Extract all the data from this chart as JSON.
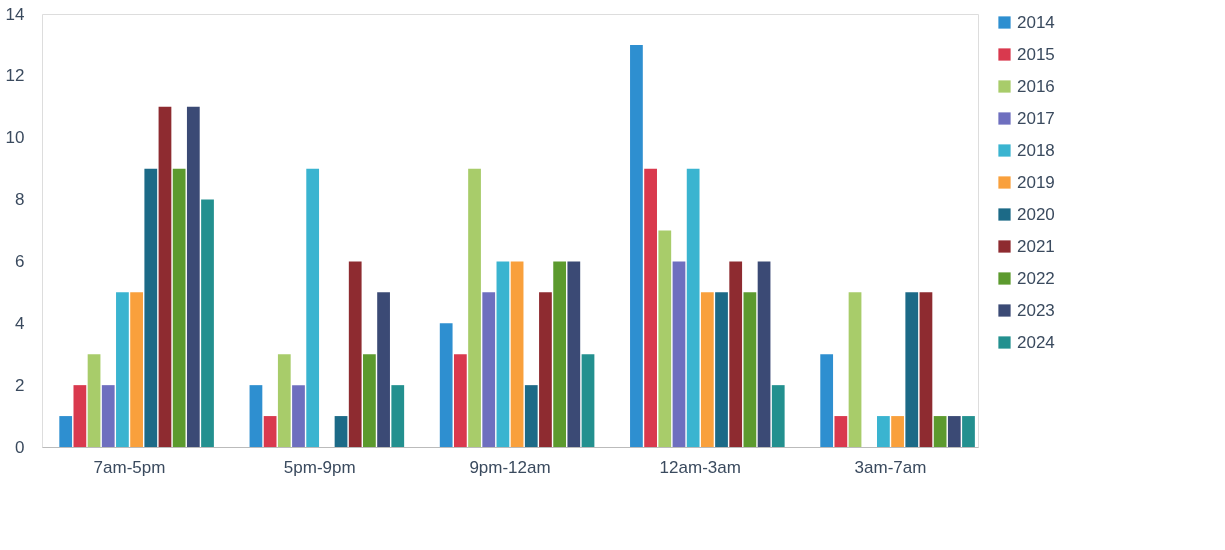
{
  "chart_data": {
    "type": "bar",
    "categories": [
      "7am-5pm",
      "5pm-9pm",
      "9pm-12am",
      "12am-3am",
      "3am-7am"
    ],
    "ylim": [
      0,
      14
    ],
    "yticks": [
      0,
      2,
      4,
      6,
      8,
      10,
      12,
      14
    ],
    "grid": false,
    "legend": "right",
    "series": [
      {
        "name": "2014",
        "color": "#2e8fd0",
        "values": [
          1,
          2,
          4,
          13,
          3
        ]
      },
      {
        "name": "2015",
        "color": "#d9394e",
        "values": [
          2,
          1,
          3,
          9,
          1
        ]
      },
      {
        "name": "2016",
        "color": "#a8cc6a",
        "values": [
          3,
          3,
          9,
          7,
          5
        ]
      },
      {
        "name": "2017",
        "color": "#6e6fbf",
        "values": [
          2,
          2,
          5,
          6,
          0
        ]
      },
      {
        "name": "2018",
        "color": "#3ab4d0",
        "values": [
          5,
          9,
          6,
          9,
          1
        ]
      },
      {
        "name": "2019",
        "color": "#f9a03c",
        "values": [
          5,
          0,
          6,
          5,
          1
        ]
      },
      {
        "name": "2020",
        "color": "#1c6a87",
        "values": [
          9,
          1,
          2,
          5,
          5
        ]
      },
      {
        "name": "2021",
        "color": "#8e2b30",
        "values": [
          11,
          6,
          5,
          6,
          5
        ]
      },
      {
        "name": "2022",
        "color": "#5c9a2e",
        "values": [
          9,
          3,
          6,
          5,
          1
        ]
      },
      {
        "name": "2023",
        "color": "#3b4a75",
        "values": [
          11,
          5,
          6,
          6,
          1
        ]
      },
      {
        "name": "2024",
        "color": "#23908f",
        "values": [
          8,
          2,
          3,
          2,
          1
        ]
      }
    ]
  }
}
